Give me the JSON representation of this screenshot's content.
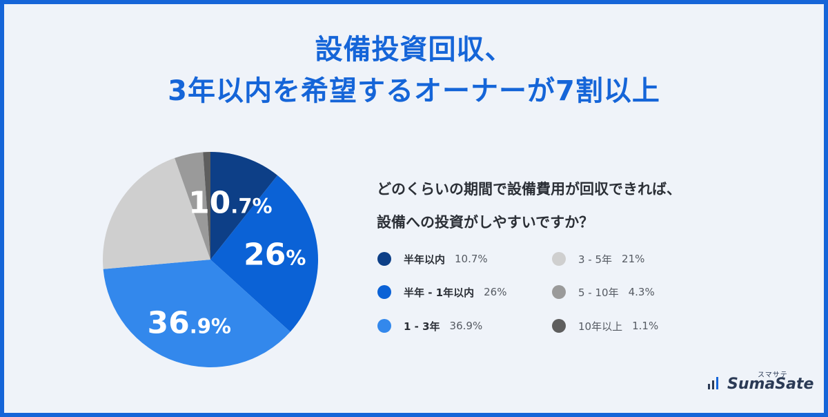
{
  "title": {
    "line1": "設備投資回収、",
    "line2": "3年以内を希望するオーナーが7割以上"
  },
  "question": {
    "line1": "どのくらいの期間で設備費用が回収できれば、",
    "line2": "設備への投資がしやすいですか？"
  },
  "chart_data": {
    "type": "pie",
    "categories": [
      "半年以内",
      "半年 - 1年以内",
      "1 - 3年",
      "3 - 5年",
      "5 - 10年",
      "10年以上"
    ],
    "values": [
      10.7,
      26,
      36.9,
      21,
      4.3,
      1.1
    ],
    "value_labels": [
      "10.7%",
      "26%",
      "36.9%",
      "21%",
      "4.3%",
      "1.1%"
    ],
    "colors": [
      "#0d3f87",
      "#0b62d6",
      "#3388ec",
      "#cfcfcf",
      "#9a9a9a",
      "#5e5e5e"
    ],
    "slice_labels": [
      {
        "index": 0,
        "int": "10",
        "dec": ".7%"
      },
      {
        "index": 1,
        "int": "26",
        "dec": "%"
      },
      {
        "index": 2,
        "int": "36",
        "dec": ".9%"
      }
    ]
  },
  "legend": [
    {
      "label": "半年以内",
      "value": "10.7%"
    },
    {
      "label": "半年 - 1年以内",
      "value": "26%"
    },
    {
      "label": "1 - 3年",
      "value": "36.9%"
    },
    {
      "label": "3 - 5年",
      "value": "21%"
    },
    {
      "label": "5 - 10年",
      "value": "4.3%"
    },
    {
      "label": "10年以上",
      "value": "1.1%"
    }
  ],
  "logo": {
    "kana": "スマサテ",
    "text": "SumaSate"
  }
}
